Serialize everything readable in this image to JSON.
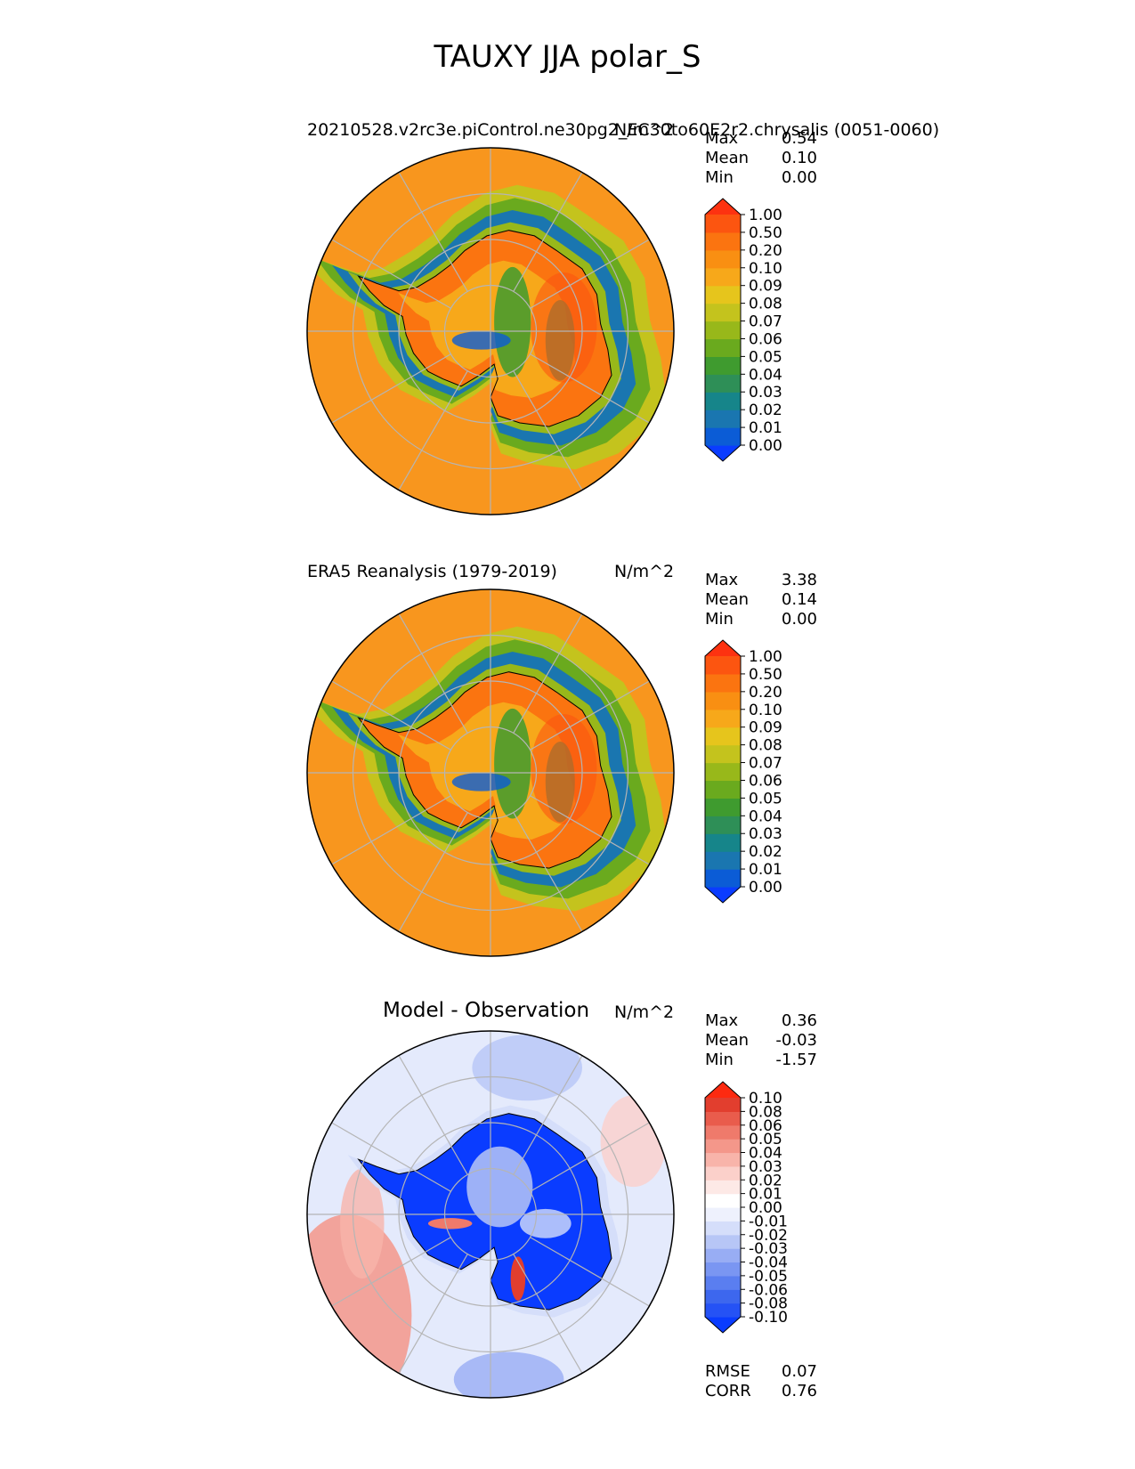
{
  "figure_title": "TAUXY JJA polar_S",
  "panels": [
    {
      "title": "20210528.v2rc3e.piControl.ne30pg2_EC30to60E2r2.chrysalis (0051-0060)",
      "units": "N/m^2",
      "stats": [
        {
          "label": "Max",
          "value": "0.54"
        },
        {
          "label": "Mean",
          "value": "0.10"
        },
        {
          "label": "Min",
          "value": "0.00"
        }
      ],
      "colorbar_labels": [
        "1.00",
        "0.50",
        "0.20",
        "0.10",
        "0.09",
        "0.08",
        "0.07",
        "0.06",
        "0.05",
        "0.04",
        "0.03",
        "0.02",
        "0.01",
        "0.00"
      ]
    },
    {
      "title": "ERA5 Reanalysis (1979-2019)",
      "units": "N/m^2",
      "stats": [
        {
          "label": "Max",
          "value": "3.38"
        },
        {
          "label": "Mean",
          "value": "0.14"
        },
        {
          "label": "Min",
          "value": "0.00"
        }
      ],
      "colorbar_labels": [
        "1.00",
        "0.50",
        "0.20",
        "0.10",
        "0.09",
        "0.08",
        "0.07",
        "0.06",
        "0.05",
        "0.04",
        "0.03",
        "0.02",
        "0.01",
        "0.00"
      ]
    },
    {
      "title": "Model - Observation",
      "units": "N/m^2",
      "stats": [
        {
          "label": "Max",
          "value": "0.36"
        },
        {
          "label": "Mean",
          "value": "-0.03"
        },
        {
          "label": "Min",
          "value": "-1.57"
        }
      ],
      "colorbar_labels": [
        "0.10",
        "0.08",
        "0.06",
        "0.05",
        "0.04",
        "0.03",
        "0.02",
        "0.01",
        "0.00",
        "-0.01",
        "-0.02",
        "-0.03",
        "-0.04",
        "-0.05",
        "-0.06",
        "-0.08",
        "-0.10"
      ],
      "metrics": [
        {
          "label": "RMSE",
          "value": "0.07"
        },
        {
          "label": "CORR",
          "value": "0.76"
        }
      ]
    }
  ],
  "colors": {
    "sequential": [
      "#0a3cff",
      "#0b5cd6",
      "#1a76b0",
      "#16858a",
      "#2e8f57",
      "#3f9b2f",
      "#6aaa1e",
      "#98b81a",
      "#c4c31d",
      "#e6c51c",
      "#f7a81a",
      "#f98f12",
      "#fb7410",
      "#fc5510",
      "#fd3210"
    ],
    "diverging": [
      "#0a3cff",
      "#2552f5",
      "#3d67ee",
      "#5a7ef0",
      "#7a96f2",
      "#98adf4",
      "#b7c6f6",
      "#d5defa",
      "#eef1fd",
      "#ffffff",
      "#fde9e6",
      "#fbd0ca",
      "#f8b4aa",
      "#f4978a",
      "#ef7a6b",
      "#e95c4c",
      "#e23e2e",
      "#fd2a10"
    ],
    "ocean_model": "#f8961e",
    "ocean_obs": "#f8961e",
    "diff_bg": "#e4eafc"
  },
  "chart_data": [
    {
      "type": "heatmap",
      "projection": "south polar stereographic",
      "title": "20210528.v2rc3e.piControl.ne30pg2_EC30to60E2r2.chrysalis (0051-0060)",
      "units": "N/m^2",
      "levels": [
        0.0,
        0.01,
        0.02,
        0.03,
        0.04,
        0.05,
        0.06,
        0.07,
        0.08,
        0.09,
        0.1,
        0.2,
        0.5,
        1.0
      ],
      "extend": "both",
      "max": 0.54,
      "mean": 0.1,
      "min": 0.0
    },
    {
      "type": "heatmap",
      "projection": "south polar stereographic",
      "title": "ERA5 Reanalysis (1979-2019)",
      "units": "N/m^2",
      "levels": [
        0.0,
        0.01,
        0.02,
        0.03,
        0.04,
        0.05,
        0.06,
        0.07,
        0.08,
        0.09,
        0.1,
        0.2,
        0.5,
        1.0
      ],
      "extend": "both",
      "max": 3.38,
      "mean": 0.14,
      "min": 0.0
    },
    {
      "type": "heatmap",
      "projection": "south polar stereographic",
      "title": "Model - Observation",
      "units": "N/m^2",
      "levels": [
        -0.1,
        -0.08,
        -0.06,
        -0.05,
        -0.04,
        -0.03,
        -0.02,
        -0.01,
        0.0,
        0.01,
        0.02,
        0.03,
        0.04,
        0.05,
        0.06,
        0.08,
        0.1
      ],
      "extend": "both",
      "max": 0.36,
      "mean": -0.03,
      "min": -1.57,
      "rmse": 0.07,
      "corr": 0.76
    }
  ]
}
